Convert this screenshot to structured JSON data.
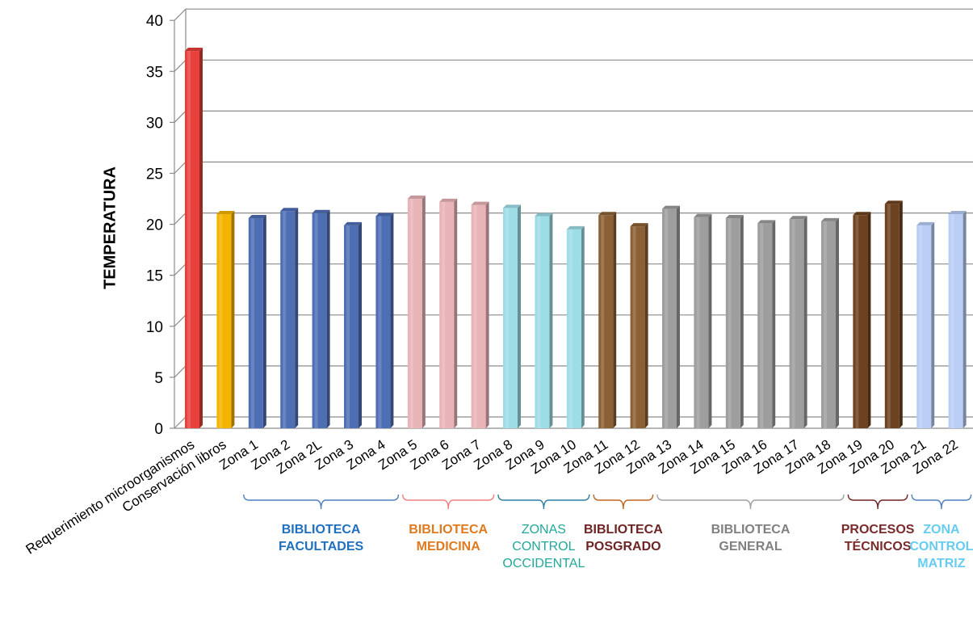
{
  "chart_data": {
    "type": "bar",
    "title": "",
    "xlabel": "",
    "ylabel": "TEMPERATURA",
    "ylim": [
      0,
      40
    ],
    "yticks": [
      0,
      5,
      10,
      15,
      20,
      25,
      30,
      35,
      40
    ],
    "grid": true,
    "legend": "none",
    "categories": [
      "Requerimiento microorganismos",
      "Conservación libros",
      "Zona 1",
      "Zona 2",
      "Zona 2L",
      "Zona 3",
      "Zona 4",
      "Zona 5",
      "Zona 6",
      "Zona 7",
      "Zona 8",
      "Zona 9",
      "Zona 10",
      "Zona 11",
      "Zona 12",
      "Zona 13",
      "Zona 14",
      "Zona 15",
      "Zona 16",
      "Zona 17",
      "Zona 18",
      "Zona 19",
      "Zona 20",
      "Zona 21",
      "Zona 22"
    ],
    "values": [
      37,
      21,
      20.6,
      21.3,
      21.1,
      19.9,
      20.8,
      22.5,
      22.2,
      21.9,
      21.6,
      20.8,
      19.5,
      20.9,
      19.8,
      21.5,
      20.7,
      20.6,
      20.1,
      20.5,
      20.3,
      20.9,
      22.0,
      19.9,
      21.0
    ],
    "bar_colors": [
      "#e8403c",
      "#f5b400",
      "#4f6fb5",
      "#4f6fb5",
      "#4f6fb5",
      "#4f6fb5",
      "#4f6fb5",
      "#e8b4b8",
      "#e8b4b8",
      "#e8b4b8",
      "#9fdde6",
      "#9fdde6",
      "#9fdde6",
      "#8b6035",
      "#8b6035",
      "#9e9e9e",
      "#9e9e9e",
      "#9e9e9e",
      "#9e9e9e",
      "#9e9e9e",
      "#9e9e9e",
      "#6e4220",
      "#6e4220",
      "#b9cdf5",
      "#b9cdf5"
    ],
    "groups": [
      {
        "label_lines": [
          "BIBLIOTECA",
          "FACULTADES"
        ],
        "from": 2,
        "to": 6,
        "color": "#1f6fbf",
        "bracket_color": "#4f7fbf",
        "bold": true
      },
      {
        "label_lines": [
          "BIBLIOTECA",
          "MEDICINA"
        ],
        "from": 7,
        "to": 9,
        "color": "#e07a1f",
        "bracket_color": "#f08080",
        "bold": true
      },
      {
        "label_lines": [
          "ZONAS",
          "CONTROL",
          "OCCIDENTAL"
        ],
        "from": 10,
        "to": 12,
        "color": "#22a89a",
        "bracket_color": "#2f7f9f",
        "bold": false
      },
      {
        "label_lines": [
          "BIBLIOTECA",
          "POSGRADO"
        ],
        "from": 13,
        "to": 14,
        "color": "#6e2424",
        "bracket_color": "#c0651f",
        "bold": true
      },
      {
        "label_lines": [
          "BIBLIOTECA",
          "GENERAL"
        ],
        "from": 15,
        "to": 20,
        "color": "#808080",
        "bracket_color": "#a0a0a0",
        "bold": true
      },
      {
        "label_lines": [
          "PROCESOS",
          "TÉCNICOS"
        ],
        "from": 21,
        "to": 22,
        "color": "#7a2a2a",
        "bracket_color": "#6e2424",
        "bold": true
      },
      {
        "label_lines": [
          "ZONA",
          "CONTROL",
          "MATRIZ"
        ],
        "from": 23,
        "to": 24,
        "color": "#66ccf0",
        "bracket_color": "#4f7fbf",
        "bold": true
      }
    ]
  }
}
